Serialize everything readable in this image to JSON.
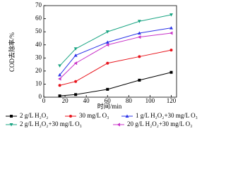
{
  "chart_data": {
    "type": "line",
    "x_label": "时间/min",
    "y_label": "COD去除率/%",
    "x": [
      15,
      30,
      60,
      90,
      120
    ],
    "xlim": [
      0,
      125
    ],
    "xticks": [
      0,
      20,
      40,
      60,
      80,
      100,
      120
    ],
    "ylim": [
      0,
      70
    ],
    "yticks": [
      0,
      10,
      20,
      30,
      40,
      50,
      60,
      70
    ],
    "series": [
      {
        "name": "2 g/L H₂O₂",
        "color": "#000000",
        "marker": "square",
        "values": [
          1,
          2,
          6,
          13,
          19
        ]
      },
      {
        "name": "30 mg/L O₃",
        "color": "#e8141c",
        "marker": "circle",
        "values": [
          9,
          12,
          26,
          31,
          36
        ]
      },
      {
        "name": "1 g/L H₂O₂+30 mg/L O₃",
        "color": "#2b34e8",
        "marker": "triangle-up",
        "values": [
          17,
          32,
          42,
          49,
          53
        ]
      },
      {
        "name": "2 g/L H₂O₂+30 mg/L O₃",
        "color": "#1aa583",
        "marker": "triangle-down",
        "values": [
          24,
          37,
          50,
          58,
          63
        ]
      },
      {
        "name": "20 g/L H₂O₂+30 mg/L O₃",
        "color": "#c832c8",
        "marker": "triangle-left",
        "values": [
          14,
          26,
          40,
          46,
          49
        ]
      }
    ]
  }
}
